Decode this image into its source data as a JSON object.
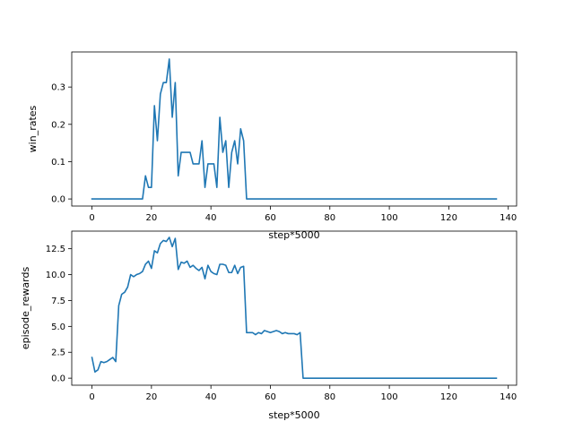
{
  "colors": {
    "line": "#1f77b4",
    "axes": "#000000",
    "background": "#ffffff"
  },
  "chart_data": [
    {
      "type": "line",
      "xlabel": "step*5000",
      "ylabel": "win_rates",
      "xlim": [
        -6.8,
        142.8
      ],
      "ylim": [
        -0.019,
        0.394
      ],
      "xticks": [
        0,
        20,
        40,
        60,
        80,
        100,
        120,
        140
      ],
      "yticks": [
        0.0,
        0.1,
        0.2,
        0.3
      ],
      "ytick_labels": [
        "0.0",
        "0.1",
        "0.2",
        "0.3"
      ],
      "grid": false,
      "series": [
        {
          "x": [
            0,
            17,
            18,
            19,
            20,
            21,
            22,
            23,
            24,
            25,
            26,
            27,
            28,
            29,
            30,
            31,
            32,
            33,
            34,
            35,
            36,
            37,
            38,
            39,
            40,
            41,
            42,
            43,
            44,
            45,
            46,
            47,
            48,
            49,
            50,
            51,
            52,
            60,
            80,
            100,
            120,
            136
          ],
          "y": [
            0,
            0,
            0.062,
            0.031,
            0.031,
            0.25,
            0.156,
            0.281,
            0.312,
            0.312,
            0.375,
            0.219,
            0.312,
            0.062,
            0.125,
            0.125,
            0.125,
            0.125,
            0.094,
            0.094,
            0.094,
            0.156,
            0.031,
            0.094,
            0.094,
            0.094,
            0.031,
            0.219,
            0.125,
            0.156,
            0.031,
            0.125,
            0.156,
            0.094,
            0.188,
            0.156,
            0,
            0,
            0,
            0,
            0,
            0
          ]
        }
      ]
    },
    {
      "type": "line",
      "xlabel": "step*5000",
      "ylabel": "episode_rewards",
      "xlim": [
        -6.8,
        142.8
      ],
      "ylim": [
        -0.68,
        14.2
      ],
      "xticks": [
        0,
        20,
        40,
        60,
        80,
        100,
        120,
        140
      ],
      "yticks": [
        0.0,
        2.5,
        5.0,
        7.5,
        10.0,
        12.5
      ],
      "ytick_labels": [
        "0.0",
        "2.5",
        "5.0",
        "7.5",
        "10.0",
        "12.5"
      ],
      "grid": false,
      "series": [
        {
          "x": [
            0,
            1,
            2,
            3,
            4,
            5,
            6,
            7,
            8,
            9,
            10,
            11,
            12,
            13,
            14,
            15,
            16,
            17,
            18,
            19,
            20,
            21,
            22,
            23,
            24,
            25,
            26,
            27,
            28,
            29,
            30,
            31,
            32,
            33,
            34,
            35,
            36,
            37,
            38,
            39,
            40,
            41,
            42,
            43,
            44,
            45,
            46,
            47,
            48,
            49,
            50,
            51,
            52,
            53,
            54,
            55,
            56,
            57,
            58,
            59,
            60,
            61,
            62,
            63,
            64,
            65,
            66,
            67,
            68,
            69,
            70,
            71,
            72,
            80,
            100,
            120,
            136
          ],
          "y": [
            2.0,
            0.6,
            0.8,
            1.6,
            1.5,
            1.6,
            1.8,
            2.0,
            1.6,
            7.0,
            8.1,
            8.3,
            8.8,
            10.0,
            9.8,
            10.0,
            10.1,
            10.3,
            11.0,
            11.3,
            10.6,
            12.3,
            12.1,
            13.0,
            13.3,
            13.2,
            13.6,
            12.7,
            13.5,
            10.5,
            11.2,
            11.1,
            11.3,
            10.7,
            10.9,
            10.6,
            10.4,
            10.7,
            9.6,
            10.9,
            10.3,
            10.1,
            10.0,
            11.0,
            11.0,
            10.9,
            10.2,
            10.2,
            10.9,
            10.1,
            10.7,
            10.8,
            4.4,
            4.4,
            4.4,
            4.2,
            4.4,
            4.3,
            4.6,
            4.5,
            4.4,
            4.5,
            4.6,
            4.5,
            4.3,
            4.4,
            4.3,
            4.3,
            4.3,
            4.2,
            4.4,
            0.0,
            0.0,
            0.0,
            0.0,
            0.0,
            0.0
          ]
        }
      ]
    }
  ]
}
